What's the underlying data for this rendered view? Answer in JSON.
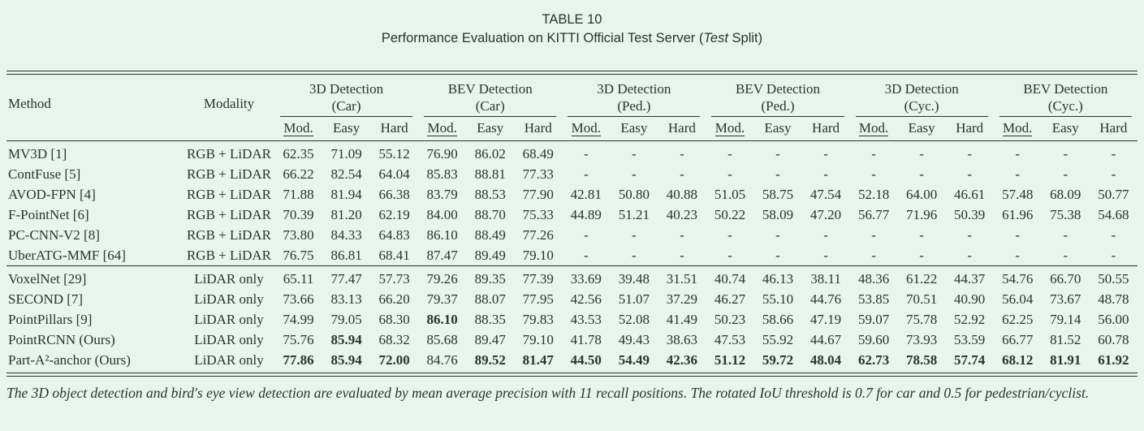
{
  "colors": {
    "background": "#e8f4ee",
    "ink": "#26362e"
  },
  "title": {
    "table_label": "TABLE 10",
    "caption_prefix": "Performance Evaluation on KITTI Official Test Server (",
    "caption_italic": "Test",
    "caption_suffix": " Split)"
  },
  "table": {
    "method_header": "Method",
    "modality_header": "Modality",
    "groups": [
      {
        "title": "3D Detection",
        "subtitle": "(Car)"
      },
      {
        "title": "BEV Detection",
        "subtitle": "(Car)"
      },
      {
        "title": "3D Detection",
        "subtitle": "(Ped.)"
      },
      {
        "title": "BEV Detection",
        "subtitle": "(Ped.)"
      },
      {
        "title": "3D Detection",
        "subtitle": "(Cyc.)"
      },
      {
        "title": "BEV Detection",
        "subtitle": "(Cyc.)"
      }
    ],
    "subcolumns": [
      "Mod.",
      "Easy",
      "Hard"
    ],
    "sections": [
      {
        "rows": [
          {
            "method": "MV3D [1]",
            "modality": "RGB + LiDAR",
            "values": [
              "62.35",
              "71.09",
              "55.12",
              "76.90",
              "86.02",
              "68.49",
              "-",
              "-",
              "-",
              "-",
              "-",
              "-",
              "-",
              "-",
              "-",
              "-",
              "-",
              "-"
            ],
            "bold": []
          },
          {
            "method": "ContFuse [5]",
            "modality": "RGB + LiDAR",
            "values": [
              "66.22",
              "82.54",
              "64.04",
              "85.83",
              "88.81",
              "77.33",
              "-",
              "-",
              "-",
              "-",
              "-",
              "-",
              "-",
              "-",
              "-",
              "-",
              "-",
              "-"
            ],
            "bold": []
          },
          {
            "method": "AVOD-FPN [4]",
            "modality": "RGB + LiDAR",
            "values": [
              "71.88",
              "81.94",
              "66.38",
              "83.79",
              "88.53",
              "77.90",
              "42.81",
              "50.80",
              "40.88",
              "51.05",
              "58.75",
              "47.54",
              "52.18",
              "64.00",
              "46.61",
              "57.48",
              "68.09",
              "50.77"
            ],
            "bold": []
          },
          {
            "method": "F-PointNet [6]",
            "modality": "RGB + LiDAR",
            "values": [
              "70.39",
              "81.20",
              "62.19",
              "84.00",
              "88.70",
              "75.33",
              "44.89",
              "51.21",
              "40.23",
              "50.22",
              "58.09",
              "47.20",
              "56.77",
              "71.96",
              "50.39",
              "61.96",
              "75.38",
              "54.68"
            ],
            "bold": []
          },
          {
            "method": "PC-CNN-V2 [8]",
            "modality": "RGB + LiDAR",
            "values": [
              "73.80",
              "84.33",
              "64.83",
              "86.10",
              "88.49",
              "77.26",
              "-",
              "-",
              "-",
              "-",
              "-",
              "-",
              "-",
              "-",
              "-",
              "-",
              "-",
              "-"
            ],
            "bold": []
          },
          {
            "method": "UberATG-MMF [64]",
            "modality": "RGB + LiDAR",
            "values": [
              "76.75",
              "86.81",
              "68.41",
              "87.47",
              "89.49",
              "79.10",
              "-",
              "-",
              "-",
              "-",
              "-",
              "-",
              "-",
              "-",
              "-",
              "-",
              "-",
              "-"
            ],
            "bold": []
          }
        ]
      },
      {
        "rows": [
          {
            "method": "VoxelNet [29]",
            "modality": "LiDAR only",
            "values": [
              "65.11",
              "77.47",
              "57.73",
              "79.26",
              "89.35",
              "77.39",
              "33.69",
              "39.48",
              "31.51",
              "40.74",
              "46.13",
              "38.11",
              "48.36",
              "61.22",
              "44.37",
              "54.76",
              "66.70",
              "50.55"
            ],
            "bold": []
          },
          {
            "method": "SECOND [7]",
            "modality": "LiDAR only",
            "values": [
              "73.66",
              "83.13",
              "66.20",
              "79.37",
              "88.07",
              "77.95",
              "42.56",
              "51.07",
              "37.29",
              "46.27",
              "55.10",
              "44.76",
              "53.85",
              "70.51",
              "40.90",
              "56.04",
              "73.67",
              "48.78"
            ],
            "bold": []
          },
          {
            "method": "PointPillars [9]",
            "modality": "LiDAR only",
            "values": [
              "74.99",
              "79.05",
              "68.30",
              "86.10",
              "88.35",
              "79.83",
              "43.53",
              "52.08",
              "41.49",
              "50.23",
              "58.66",
              "47.19",
              "59.07",
              "75.78",
              "52.92",
              "62.25",
              "79.14",
              "56.00"
            ],
            "bold": [
              3
            ]
          },
          {
            "method": "PointRCNN (Ours)",
            "modality": "LiDAR only",
            "values": [
              "75.76",
              "85.94",
              "68.32",
              "85.68",
              "89.47",
              "79.10",
              "41.78",
              "49.43",
              "38.63",
              "47.53",
              "55.92",
              "44.67",
              "59.60",
              "73.93",
              "53.59",
              "66.77",
              "81.52",
              "60.78"
            ],
            "bold": [
              1
            ]
          },
          {
            "method": "Part-A²-anchor (Ours)",
            "modality": "LiDAR only",
            "values": [
              "77.86",
              "85.94",
              "72.00",
              "84.76",
              "89.52",
              "81.47",
              "44.50",
              "54.49",
              "42.36",
              "51.12",
              "59.72",
              "48.04",
              "62.73",
              "78.58",
              "57.74",
              "68.12",
              "81.91",
              "61.92"
            ],
            "bold": [
              0,
              1,
              2,
              4,
              5,
              6,
              7,
              8,
              9,
              10,
              11,
              12,
              13,
              14,
              15,
              16,
              17
            ]
          }
        ]
      }
    ]
  },
  "footnote": "The 3D object detection and bird's eye view detection are evaluated by mean average precision with 11 recall positions. The rotated IoU threshold is 0.7 for car and 0.5 for pedestrian/cyclist."
}
